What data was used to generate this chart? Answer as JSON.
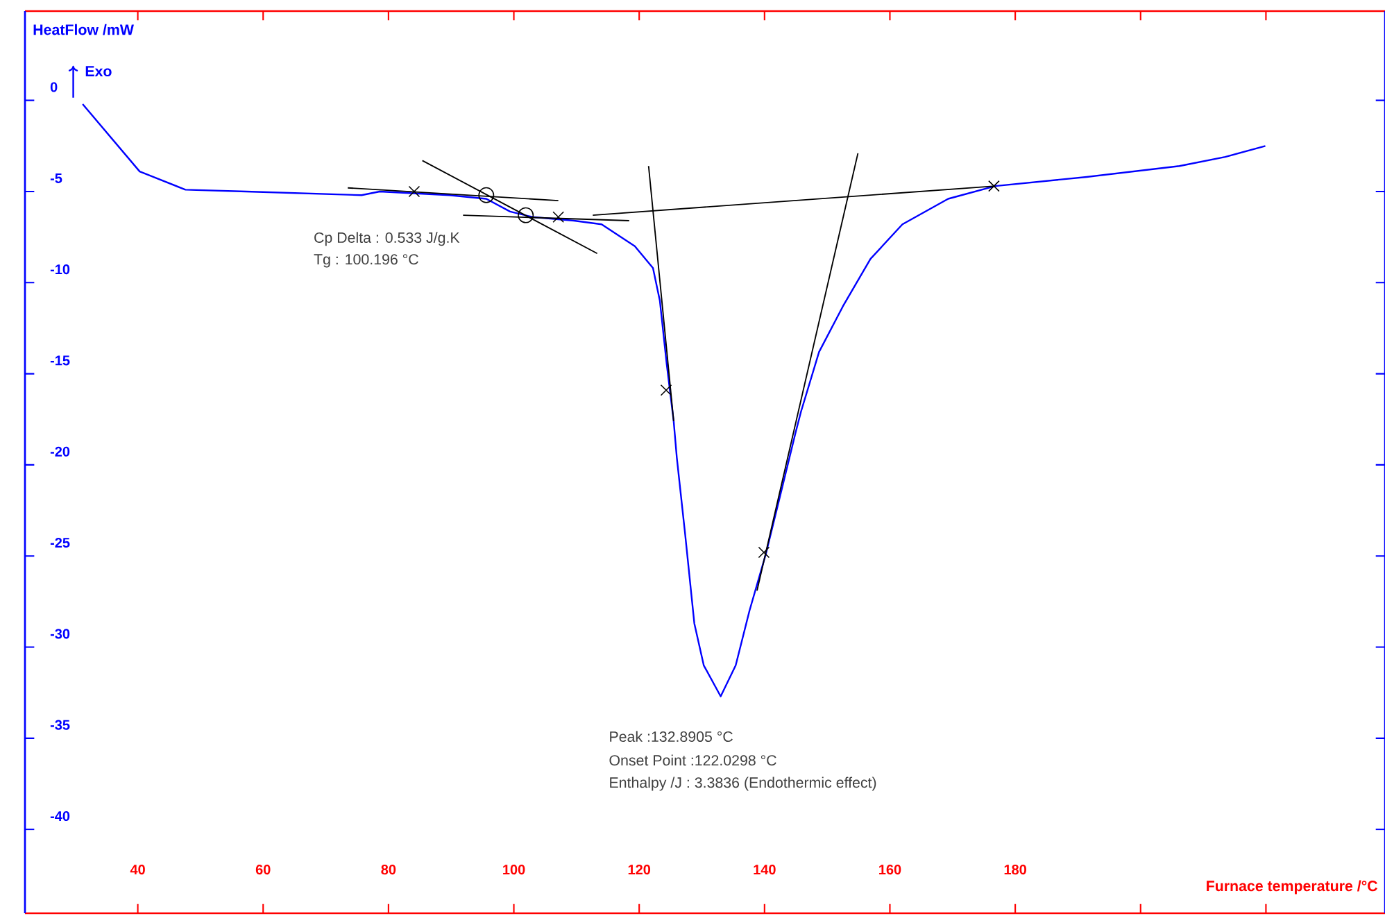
{
  "chart_data": {
    "type": "line",
    "xlabel": "Furnace temperature /°C",
    "ylabel": "HeatFlow /mW",
    "annotations": [
      "Exo",
      "Cp Delta : 0.533 J/g.K",
      "Tg : 100.196 °C",
      "Peak :132.8905 °C",
      "Onset Point :122.0298 °C",
      "Enthalpy /J : 3.3836 (Endothermic effect)"
    ],
    "xlim": [
      22,
      239
    ],
    "ylim": [
      -44.6,
      4.9
    ],
    "xticks": [
      40,
      60,
      80,
      100,
      120,
      140,
      160,
      180,
      {
        "value": 200,
        "label": null
      },
      {
        "value": 220,
        "label": null
      }
    ],
    "yticks": [
      0,
      -5,
      -10,
      -15,
      -20,
      -25,
      -30,
      -35,
      -40
    ],
    "series": [
      {
        "color": "#0000ff",
        "x": [
          31.2,
          40.3,
          47.6,
          57.3,
          75.7,
          78.6,
          89.7,
          95.6,
          99.4,
          103,
          109.6,
          114,
          119.3,
          122.2,
          123.3,
          124.4,
          125.5,
          126,
          127.3,
          128.8,
          130.3,
          133,
          135.4,
          137.6,
          140.2,
          142.7,
          144.9,
          145.8,
          148.7,
          152.5,
          156.9,
          162,
          169.3,
          176.8,
          191.4,
          206.2,
          213.5,
          219.9
        ],
        "values": [
          -0.2,
          -3.9,
          -4.9,
          -5.0,
          -5.2,
          -5.0,
          -5.2,
          -5.4,
          -6.1,
          -6.4,
          -6.6,
          -6.8,
          -8.0,
          -9.2,
          -11.0,
          -14.5,
          -17.6,
          -19.6,
          -23.7,
          -28.7,
          -31.0,
          -32.7,
          -31.0,
          -28.0,
          -24.9,
          -21.4,
          -18.3,
          -17.1,
          -13.8,
          -11.3,
          -8.7,
          -6.8,
          -5.4,
          -4.7,
          -4.2,
          -3.6,
          -3.1,
          -2.5
        ]
      },
      {
        "color": "#000000",
        "x": [
          73.5,
          107.1
        ],
        "values": [
          -4.8,
          -5.5
        ]
      },
      {
        "color": "#000000",
        "x": [
          85.4,
          113.3
        ],
        "values": [
          -3.3,
          -8.4
        ]
      },
      {
        "color": "#000000",
        "x": [
          91.9,
          118.4
        ],
        "values": [
          -6.3,
          -6.6
        ]
      },
      {
        "color": "#000000",
        "x": [
          112.6,
          176.8
        ],
        "values": [
          -6.3,
          -4.7
        ]
      },
      {
        "color": "#000000",
        "x": [
          121.5,
          125.5
        ],
        "values": [
          -3.6,
          -17.6
        ]
      },
      {
        "color": "#000000",
        "x": [
          154.9,
          138.8
        ],
        "values": [
          -2.9,
          -26.9
        ]
      },
      {
        "type": "scatter",
        "marker": "cross",
        "color": "#000000",
        "x": [
          84.1,
          107.1,
          124.3,
          139.9,
          176.6
        ],
        "values": [
          -5.0,
          -6.4,
          -15.9,
          -24.8,
          -4.7
        ]
      },
      {
        "type": "scatter",
        "marker": "circle",
        "color": "#000000",
        "x": [
          95.6,
          101.9
        ],
        "values": [
          -5.2,
          -6.3
        ]
      }
    ]
  }
}
